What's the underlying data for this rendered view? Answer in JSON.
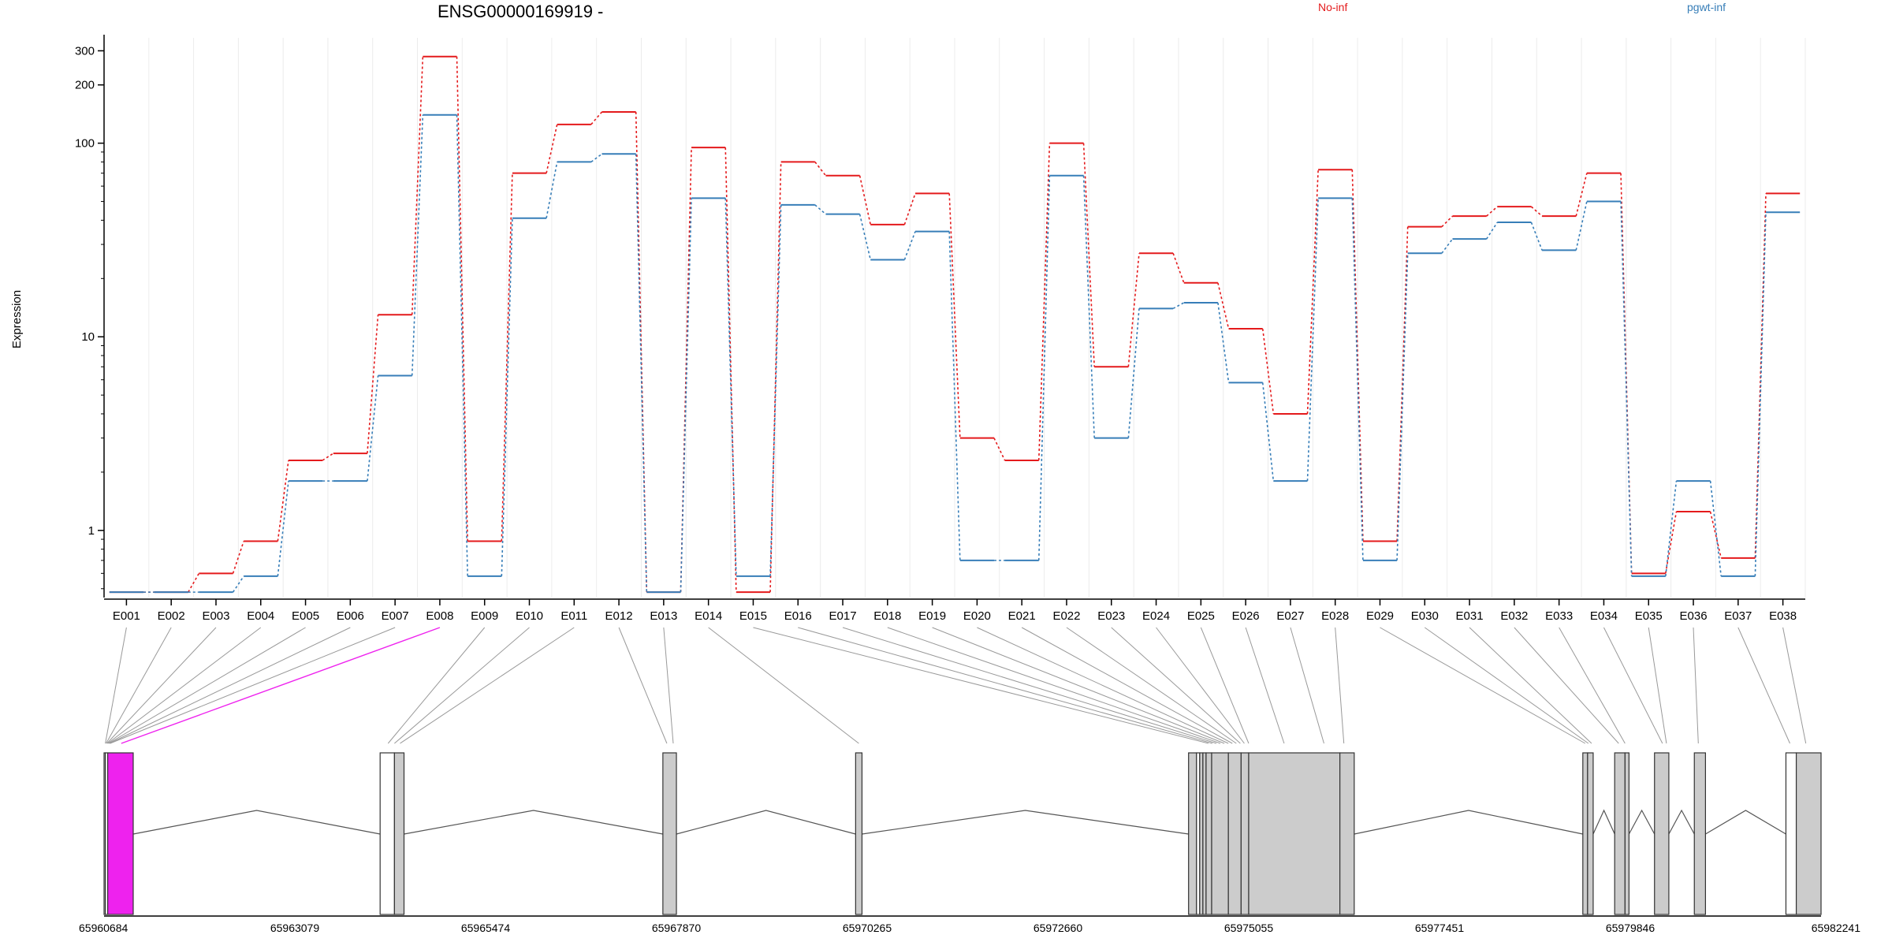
{
  "chart_data": {
    "type": "line",
    "title": "ENSG00000169919 -",
    "ylabel": "Expression",
    "xlabel": "",
    "yscale": "log",
    "ylim": [
      0.45,
      350
    ],
    "yticks": [
      1,
      10,
      100,
      200,
      300
    ],
    "grid": true,
    "legend_placement": "top",
    "categories": [
      "E001",
      "E002",
      "E003",
      "E004",
      "E005",
      "E006",
      "E007",
      "E008",
      "E009",
      "E010",
      "E011",
      "E012",
      "E013",
      "E014",
      "E015",
      "E016",
      "E017",
      "E018",
      "E019",
      "E020",
      "E021",
      "E022",
      "E023",
      "E024",
      "E025",
      "E026",
      "E027",
      "E028",
      "E029",
      "E030",
      "E031",
      "E032",
      "E033",
      "E034",
      "E035",
      "E036",
      "E037",
      "E038"
    ],
    "series": [
      {
        "name": "No-inf",
        "color": "#e41a1c",
        "values": [
          0.48,
          0.48,
          0.6,
          0.88,
          2.3,
          2.5,
          13,
          280,
          0.88,
          70,
          125,
          145,
          0.48,
          95,
          0.48,
          80,
          68,
          38,
          55,
          3,
          2.3,
          100,
          7,
          27,
          19,
          11,
          4,
          73,
          0.88,
          37,
          42,
          47,
          42,
          70,
          0.6,
          1.25,
          0.72,
          55
        ]
      },
      {
        "name": "pgwt-inf",
        "color": "#377eb8",
        "values": [
          0.48,
          0.48,
          0.48,
          0.58,
          1.8,
          1.8,
          6.3,
          140,
          0.58,
          41,
          80,
          88,
          0.48,
          52,
          0.58,
          48,
          43,
          25,
          35,
          0.7,
          0.7,
          68,
          3,
          14,
          15,
          5.8,
          1.8,
          52,
          0.7,
          27,
          32,
          39,
          28,
          50,
          0.58,
          1.8,
          0.58,
          44
        ]
      }
    ]
  },
  "gene_model": {
    "coord_labels": [
      "65960684",
      "65963079",
      "65965474",
      "65967870",
      "65970265",
      "65972660",
      "65975055",
      "65977451",
      "65979846",
      "65982241"
    ],
    "coord_start": 65960684,
    "coord_end": 65982241,
    "highlight_color": "#ee22ee",
    "exon_color": "#cccccc",
    "exons": [
      {
        "s": 65960684,
        "e": 65960700,
        "c": "#cccccc"
      },
      {
        "s": 65960700,
        "e": 65960730,
        "c": "#ffffff"
      },
      {
        "s": 65960730,
        "e": 65961050,
        "c": "#ee22ee"
      },
      {
        "s": 65964150,
        "e": 65964330,
        "c": "#ffffff"
      },
      {
        "s": 65964330,
        "e": 65964450,
        "c": "#cccccc"
      },
      {
        "s": 65967700,
        "e": 65967870,
        "c": "#cccccc"
      },
      {
        "s": 65970120,
        "e": 65970200,
        "c": "#cccccc"
      },
      {
        "s": 65974300,
        "e": 65974400,
        "c": "#cccccc"
      },
      {
        "s": 65974400,
        "e": 65974440,
        "c": "#ffffff"
      },
      {
        "s": 65974440,
        "e": 65974480,
        "c": "#cccccc"
      },
      {
        "s": 65974480,
        "e": 65974520,
        "c": "#cccccc"
      },
      {
        "s": 65974520,
        "e": 65974590,
        "c": "#cccccc"
      },
      {
        "s": 65974590,
        "e": 65974800,
        "c": "#cccccc"
      },
      {
        "s": 65974800,
        "e": 65974960,
        "c": "#cccccc"
      },
      {
        "s": 65974960,
        "e": 65975055,
        "c": "#cccccc"
      },
      {
        "s": 65975055,
        "e": 65976200,
        "c": "#cccccc"
      },
      {
        "s": 65976200,
        "e": 65976380,
        "c": "#cccccc"
      },
      {
        "s": 65979250,
        "e": 65979310,
        "c": "#cccccc"
      },
      {
        "s": 65979310,
        "e": 65979380,
        "c": "#cccccc"
      },
      {
        "s": 65979650,
        "e": 65979780,
        "c": "#cccccc"
      },
      {
        "s": 65979780,
        "e": 65979830,
        "c": "#cccccc"
      },
      {
        "s": 65980150,
        "e": 65980330,
        "c": "#cccccc"
      },
      {
        "s": 65980650,
        "e": 65980790,
        "c": "#cccccc"
      },
      {
        "s": 65981800,
        "e": 65981930,
        "c": "#ffffff"
      },
      {
        "s": 65981930,
        "e": 65982241,
        "c": "#cccccc"
      }
    ],
    "introns": [
      [
        65961050,
        65964150
      ],
      [
        65964450,
        65967700
      ],
      [
        65967870,
        65970120
      ],
      [
        65970200,
        65974300
      ],
      [
        65976380,
        65979250
      ],
      [
        65979380,
        65979650
      ],
      [
        65979830,
        65980150
      ],
      [
        65980330,
        65980650
      ],
      [
        65980790,
        65981800
      ]
    ],
    "exon_links": [
      65960700,
      65960710,
      65960720,
      65960730,
      65960740,
      65960750,
      65960760,
      65960900,
      65964250,
      65964330,
      65964400,
      65967750,
      65967830,
      65970160,
      65974550,
      65974600,
      65974650,
      65974700,
      65974750,
      65974800,
      65974850,
      65974900,
      65974950,
      65975000,
      65975055,
      65975500,
      65976000,
      65976250,
      65979280,
      65979320,
      65979360,
      65979700,
      65979780,
      65980250,
      65980300,
      65980700,
      65981850,
      65982050
    ],
    "highlight_link_index": 7
  },
  "legend": {
    "no_inf": "No-inf",
    "pgwt_inf": "pgwt-inf"
  }
}
